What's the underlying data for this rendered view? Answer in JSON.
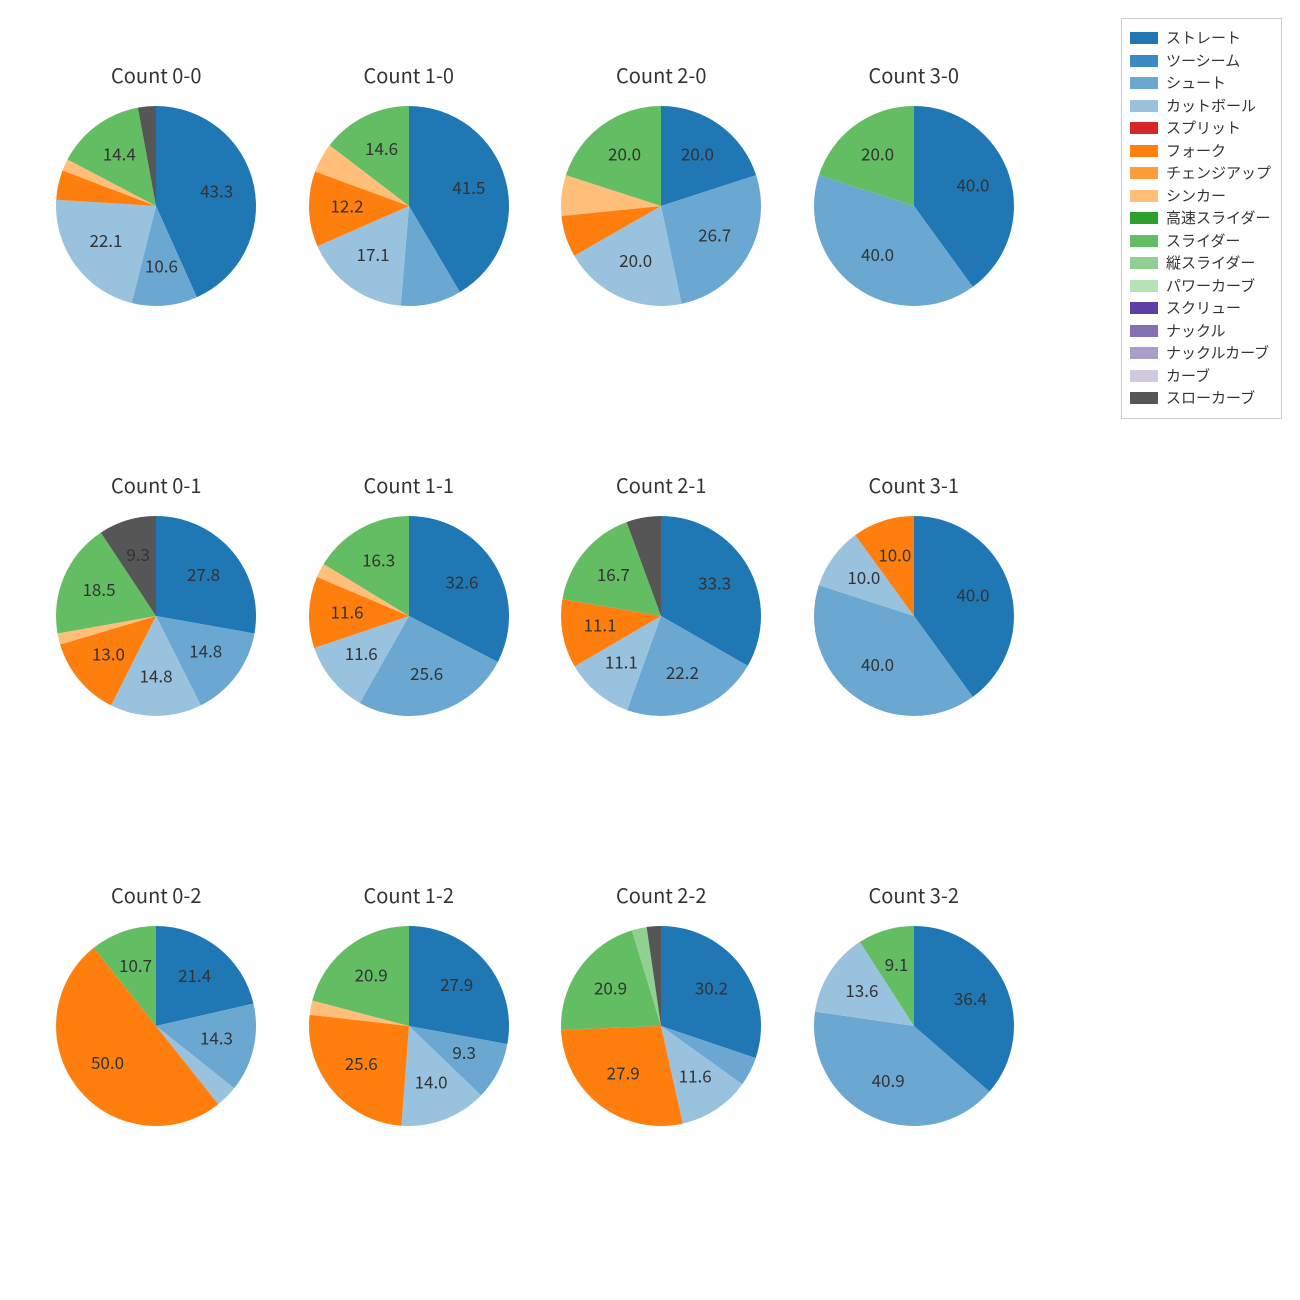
{
  "background_color": "#ffffff",
  "title_fontsize": 20,
  "label_fontsize": 17,
  "legend_fontsize": 15,
  "start_angle_deg": 90,
  "direction": "ccw",
  "colors": {
    "straight": "#1f77b4",
    "twoseam": "#3a89c0",
    "shoot": "#6aa8d1",
    "cutter": "#99c2de",
    "split": "#d62728",
    "fork": "#ff7f0e",
    "changeup": "#ff9d3c",
    "sinker": "#ffbf7a",
    "hslider": "#2ca02c",
    "slider": "#63bd63",
    "vslider": "#90d090",
    "powercurve": "#b7e2b7",
    "screw": "#5c3fa3",
    "knuckle": "#8470b3",
    "kncurve": "#ab9fc9",
    "curve": "#d0cadf",
    "slowcurve": "#565656"
  },
  "legend": [
    {
      "key": "straight",
      "label": "ストレート"
    },
    {
      "key": "twoseam",
      "label": "ツーシーム"
    },
    {
      "key": "shoot",
      "label": "シュート"
    },
    {
      "key": "cutter",
      "label": "カットボール"
    },
    {
      "key": "split",
      "label": "スプリット"
    },
    {
      "key": "fork",
      "label": "フォーク"
    },
    {
      "key": "changeup",
      "label": "チェンジアップ"
    },
    {
      "key": "sinker",
      "label": "シンカー"
    },
    {
      "key": "hslider",
      "label": "高速スライダー"
    },
    {
      "key": "slider",
      "label": "スライダー"
    },
    {
      "key": "vslider",
      "label": "縦スライダー"
    },
    {
      "key": "powercurve",
      "label": "パワーカーブ"
    },
    {
      "key": "screw",
      "label": "スクリュー"
    },
    {
      "key": "knuckle",
      "label": "ナックル"
    },
    {
      "key": "kncurve",
      "label": "ナックルカーブ"
    },
    {
      "key": "curve",
      "label": "カーブ"
    },
    {
      "key": "slowcurve",
      "label": "スローカーブ"
    }
  ],
  "charts": [
    {
      "title": "Count 0-0",
      "slices": [
        {
          "key": "straight",
          "value": 43.3,
          "label": "43.3"
        },
        {
          "key": "shoot",
          "value": 10.6,
          "label": "10.6"
        },
        {
          "key": "cutter",
          "value": 22.1,
          "label": "22.1"
        },
        {
          "key": "fork",
          "value": 4.8,
          "label": ""
        },
        {
          "key": "sinker",
          "value": 1.9,
          "label": ""
        },
        {
          "key": "slider",
          "value": 14.4,
          "label": "14.4"
        },
        {
          "key": "slowcurve",
          "value": 2.9,
          "label": ""
        }
      ]
    },
    {
      "title": "Count 1-0",
      "slices": [
        {
          "key": "straight",
          "value": 41.5,
          "label": "41.5"
        },
        {
          "key": "shoot",
          "value": 9.8,
          "label": ""
        },
        {
          "key": "cutter",
          "value": 17.1,
          "label": "17.1"
        },
        {
          "key": "fork",
          "value": 12.2,
          "label": "12.2"
        },
        {
          "key": "sinker",
          "value": 4.8,
          "label": ""
        },
        {
          "key": "slider",
          "value": 14.6,
          "label": "14.6"
        }
      ]
    },
    {
      "title": "Count 2-0",
      "slices": [
        {
          "key": "straight",
          "value": 20.0,
          "label": "20.0"
        },
        {
          "key": "shoot",
          "value": 26.7,
          "label": "26.7"
        },
        {
          "key": "cutter",
          "value": 20.0,
          "label": "20.0"
        },
        {
          "key": "fork",
          "value": 6.7,
          "label": ""
        },
        {
          "key": "sinker",
          "value": 6.6,
          "label": ""
        },
        {
          "key": "slider",
          "value": 20.0,
          "label": "20.0"
        }
      ]
    },
    {
      "title": "Count 3-0",
      "slices": [
        {
          "key": "straight",
          "value": 40.0,
          "label": "40.0"
        },
        {
          "key": "shoot",
          "value": 40.0,
          "label": "40.0"
        },
        {
          "key": "slider",
          "value": 20.0,
          "label": "20.0"
        }
      ]
    },
    {
      "title": "Count 0-1",
      "slices": [
        {
          "key": "straight",
          "value": 27.8,
          "label": "27.8"
        },
        {
          "key": "shoot",
          "value": 14.8,
          "label": "14.8"
        },
        {
          "key": "cutter",
          "value": 14.8,
          "label": "14.8"
        },
        {
          "key": "fork",
          "value": 13.0,
          "label": "13.0"
        },
        {
          "key": "sinker",
          "value": 1.8,
          "label": ""
        },
        {
          "key": "slider",
          "value": 18.5,
          "label": "18.5"
        },
        {
          "key": "slowcurve",
          "value": 9.3,
          "label": "9.3"
        }
      ]
    },
    {
      "title": "Count 1-1",
      "slices": [
        {
          "key": "straight",
          "value": 32.6,
          "label": "32.6"
        },
        {
          "key": "shoot",
          "value": 25.6,
          "label": "25.6"
        },
        {
          "key": "cutter",
          "value": 11.6,
          "label": "11.6"
        },
        {
          "key": "fork",
          "value": 11.6,
          "label": "11.6"
        },
        {
          "key": "sinker",
          "value": 2.3,
          "label": ""
        },
        {
          "key": "slider",
          "value": 16.3,
          "label": "16.3"
        }
      ]
    },
    {
      "title": "Count 2-1",
      "slices": [
        {
          "key": "straight",
          "value": 33.3,
          "label": "33.3"
        },
        {
          "key": "shoot",
          "value": 22.2,
          "label": "22.2"
        },
        {
          "key": "cutter",
          "value": 11.1,
          "label": "11.1"
        },
        {
          "key": "fork",
          "value": 11.1,
          "label": "11.1"
        },
        {
          "key": "slider",
          "value": 16.7,
          "label": "16.7"
        },
        {
          "key": "slowcurve",
          "value": 5.6,
          "label": ""
        }
      ]
    },
    {
      "title": "Count 3-1",
      "slices": [
        {
          "key": "straight",
          "value": 40.0,
          "label": "40.0"
        },
        {
          "key": "shoot",
          "value": 40.0,
          "label": "40.0"
        },
        {
          "key": "cutter",
          "value": 10.0,
          "label": "10.0"
        },
        {
          "key": "fork",
          "value": 10.0,
          "label": "10.0"
        }
      ]
    },
    {
      "title": "Count 0-2",
      "slices": [
        {
          "key": "straight",
          "value": 21.4,
          "label": "21.4"
        },
        {
          "key": "shoot",
          "value": 14.3,
          "label": "14.3"
        },
        {
          "key": "cutter",
          "value": 3.6,
          "label": ""
        },
        {
          "key": "fork",
          "value": 50.0,
          "label": "50.0"
        },
        {
          "key": "slider",
          "value": 10.7,
          "label": "10.7"
        }
      ]
    },
    {
      "title": "Count 1-2",
      "slices": [
        {
          "key": "straight",
          "value": 27.9,
          "label": "27.9"
        },
        {
          "key": "shoot",
          "value": 9.3,
          "label": "9.3"
        },
        {
          "key": "cutter",
          "value": 14.0,
          "label": "14.0"
        },
        {
          "key": "fork",
          "value": 25.6,
          "label": "25.6"
        },
        {
          "key": "sinker",
          "value": 2.3,
          "label": ""
        },
        {
          "key": "slider",
          "value": 20.9,
          "label": "20.9"
        }
      ]
    },
    {
      "title": "Count 2-2",
      "slices": [
        {
          "key": "straight",
          "value": 30.2,
          "label": "30.2"
        },
        {
          "key": "shoot",
          "value": 4.7,
          "label": ""
        },
        {
          "key": "cutter",
          "value": 11.6,
          "label": "11.6"
        },
        {
          "key": "fork",
          "value": 27.9,
          "label": "27.9"
        },
        {
          "key": "slider",
          "value": 20.9,
          "label": "20.9"
        },
        {
          "key": "vslider",
          "value": 2.4,
          "label": ""
        },
        {
          "key": "slowcurve",
          "value": 2.3,
          "label": ""
        }
      ]
    },
    {
      "title": "Count 3-2",
      "slices": [
        {
          "key": "straight",
          "value": 36.4,
          "label": "36.4"
        },
        {
          "key": "shoot",
          "value": 40.9,
          "label": "40.9"
        },
        {
          "key": "cutter",
          "value": 13.6,
          "label": "13.6"
        },
        {
          "key": "slider",
          "value": 9.1,
          "label": "9.1"
        }
      ]
    }
  ]
}
